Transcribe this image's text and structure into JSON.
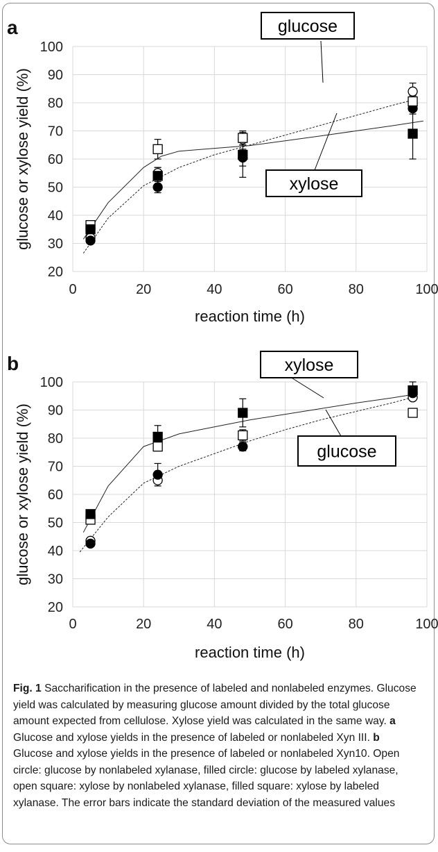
{
  "chart_data": [
    {
      "panel": "a",
      "type": "scatter",
      "xlabel": "reaction time (h)",
      "ylabel": "glucose or xylose yield (%)",
      "xlim": [
        0,
        100
      ],
      "ylim": [
        20,
        100
      ],
      "xticks": [
        0,
        20,
        40,
        60,
        80,
        100
      ],
      "yticks": [
        20,
        30,
        40,
        50,
        60,
        70,
        80,
        90,
        100
      ],
      "grid": true,
      "series": [
        {
          "marker": "open circle",
          "x": [
            5,
            24,
            48,
            96
          ],
          "y": [
            32,
            55,
            67,
            84
          ],
          "err": [
            1,
            2,
            2,
            3
          ]
        },
        {
          "marker": "filled circle",
          "x": [
            5,
            24,
            48,
            96
          ],
          "y": [
            31,
            50,
            60.5,
            78
          ],
          "err": [
            1,
            2,
            3,
            2
          ]
        },
        {
          "marker": "open square",
          "x": [
            5,
            24,
            48,
            96
          ],
          "y": [
            36.5,
            63.5,
            67.5,
            80.5
          ],
          "err": [
            1.5,
            3.5,
            2.5,
            2
          ]
        },
        {
          "marker": "filled square",
          "x": [
            5,
            24,
            48,
            96
          ],
          "y": [
            35,
            54,
            61.5,
            69
          ],
          "err": [
            1,
            3,
            8,
            9
          ]
        }
      ],
      "curves": [
        {
          "style": "dashed",
          "label": "glucose",
          "x": [
            3,
            10,
            20,
            30,
            40,
            50,
            60,
            70,
            80,
            90,
            96
          ],
          "y": [
            26.5,
            39,
            50.5,
            57,
            61.5,
            65,
            68.5,
            72,
            75.5,
            79,
            81
          ]
        },
        {
          "style": "solid",
          "label": "xylose",
          "x": [
            3,
            10,
            20,
            25,
            30,
            40,
            50,
            60,
            70,
            80,
            90,
            99
          ],
          "y": [
            31.5,
            44.5,
            57,
            61,
            62.8,
            63.8,
            64.8,
            66.5,
            68.2,
            70,
            71.8,
            73.5
          ]
        }
      ],
      "annotations": [
        "glucose",
        "xylose"
      ]
    },
    {
      "panel": "b",
      "type": "scatter",
      "xlabel": "reaction time (h)",
      "ylabel": "glucose or xylose yield (%)",
      "xlim": [
        0,
        100
      ],
      "ylim": [
        20,
        100
      ],
      "xticks": [
        0,
        20,
        40,
        60,
        80,
        100
      ],
      "yticks": [
        20,
        30,
        40,
        50,
        60,
        70,
        80,
        90,
        100
      ],
      "grid": true,
      "series": [
        {
          "marker": "open circle",
          "x": [
            5,
            24,
            48,
            96
          ],
          "y": [
            43.5,
            65,
            77,
            94.5
          ],
          "err": [
            0.5,
            1,
            1.5,
            1
          ]
        },
        {
          "marker": "filled circle",
          "x": [
            5,
            24,
            48,
            96
          ],
          "y": [
            42.5,
            67,
            77,
            96
          ],
          "err": [
            0.5,
            4,
            1,
            1
          ]
        },
        {
          "marker": "open square",
          "x": [
            5,
            24,
            48,
            96
          ],
          "y": [
            51,
            77,
            81,
            89
          ],
          "err": [
            0.5,
            1.5,
            2,
            1
          ]
        },
        {
          "marker": "filled square",
          "x": [
            5,
            24,
            48,
            96
          ],
          "y": [
            53,
            80.5,
            89,
            97
          ],
          "err": [
            1,
            4,
            5,
            3
          ]
        }
      ],
      "curves": [
        {
          "style": "solid",
          "label": "xylose",
          "x": [
            3,
            10,
            20,
            30,
            40,
            50,
            60,
            70,
            80,
            90,
            96
          ],
          "y": [
            46.5,
            63,
            77,
            81.5,
            84,
            86.5,
            88.5,
            90.5,
            92.5,
            94.3,
            95.5
          ]
        },
        {
          "style": "dashed",
          "label": "glucose",
          "x": [
            2,
            10,
            20,
            30,
            40,
            50,
            60,
            70,
            80,
            90,
            96
          ],
          "y": [
            39.5,
            52,
            64,
            70,
            74.5,
            79,
            83,
            86.5,
            89.5,
            92.5,
            94.5
          ]
        }
      ],
      "annotations": [
        "xylose",
        "glucose"
      ]
    }
  ],
  "caption": {
    "fig_label": "Fig. 1",
    "text1": "  Saccharification in the presence of labeled and nonlabeled enzymes. Glucose yield was calculated by measuring glucose amount divided by the total glucose amount expected from cellulose. Xylose yield was calculated in the same way. ",
    "a_label": "a",
    "text2": " Glucose and xylose yields in the presence of labeled or nonlabeled Xyn III. ",
    "b_label": "b",
    "text3": " Glucose and xylose yields in the presence of labeled or nonlabeled Xyn10. Open circle: glucose by nonlabeled xylanase, filled circle: glucose by labeled xylanase, open square: xylose by nonlabeled xylanase, filled square: xylose by labeled xylanase. The error bars indicate the standard deviation of the measured values"
  }
}
